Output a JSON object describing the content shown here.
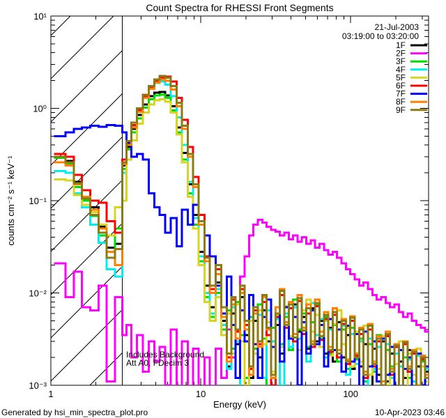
{
  "meta": {
    "date": "21-Jul-2003",
    "time_range": "03:19:00 to 03:20:00",
    "footer_left": "Generated by hsi_min_spectra_plot.pro",
    "footer_right": "10-Apr-2023 03:46"
  },
  "chart_data": {
    "type": "line",
    "title": "Count Spectra for RHESSI Front Segments",
    "xlabel": "Energy (keV)",
    "ylabel": "counts cm⁻² s⁻¹ keV⁻¹",
    "xscale": "log",
    "yscale": "log",
    "xlim": [
      1,
      331
    ],
    "ylim": [
      0.001,
      10
    ],
    "grid": false,
    "legend_position": "upper right",
    "x_ticks": {
      "values": [
        1,
        10,
        100
      ],
      "labels": [
        "1",
        "10",
        "100"
      ]
    },
    "y_ticks": {
      "values": [
        10,
        1,
        0.1,
        0.01,
        0.001
      ],
      "labels": [
        "10¹",
        "10⁰",
        "10⁻¹",
        "10⁻²",
        "10⁻³"
      ]
    },
    "hatched_region_keV": [
      1,
      3
    ],
    "annotations": [
      "Includes Background",
      "Att A0, FDecim 3"
    ],
    "energies_keV": [
      1.05,
      1.25,
      1.42,
      1.61,
      1.83,
      2.08,
      2.36,
      2.68,
      3.0,
      3.2,
      3.45,
      3.75,
      4.1,
      4.5,
      4.9,
      5.3,
      5.8,
      6.3,
      6.9,
      7.5,
      8.2,
      8.9,
      9.7,
      10.6,
      11.5,
      12.6,
      13.7,
      14.9,
      16.0,
      17.1,
      18.3,
      19.6,
      21.0,
      22.4,
      24.0,
      25.7,
      27.5,
      29.4,
      31.5,
      33.7,
      36.0,
      38.6,
      41.3,
      44.2,
      47.2,
      50.6,
      54.1,
      57.9,
      62.0,
      66.3,
      70.9,
      75.9,
      81.2,
      86.9,
      93.0,
      99.5,
      106.5,
      113.9,
      121.9,
      130.4,
      139.6,
      149.3,
      159.8,
      171.0,
      183.0,
      195.8,
      209.5,
      224.2,
      239.9,
      256.6,
      274.6,
      293.8,
      314.4
    ],
    "series": [
      {
        "name": "1F",
        "color": "#000000",
        "values": [
          0.3,
          0.27,
          0.16,
          0.11,
          0.085,
          0.052,
          0.031,
          0.034,
          0.24,
          0.38,
          0.6,
          0.85,
          1.1,
          1.35,
          1.48,
          1.5,
          1.38,
          1.05,
          0.62,
          0.33,
          0.15,
          0.07,
          0.028,
          0.012,
          0.007,
          0.013,
          0.005,
          0.0016,
          0.006,
          0.0028,
          0.009,
          0.0035,
          0.0012,
          0.005,
          0.002,
          0.0065,
          0.003,
          0.0008,
          0.0045,
          0.0022,
          0.006,
          0.0032,
          0.0075,
          0.0038,
          0.0055,
          0.0025,
          0.0068,
          0.003,
          0.005,
          0.0022,
          0.0042,
          0.0018,
          0.0048,
          0.002,
          0.0035,
          0.0015,
          0.0038,
          0.0016,
          0.0028,
          0.0009,
          0.0025,
          0.0013,
          0.003,
          0.0011,
          0.0022,
          0.0008,
          0.0018,
          0.0012,
          0.0024,
          0.0007,
          0.0016,
          0.001,
          0.0014
        ]
      },
      {
        "name": "2F",
        "color": "#ff00ff",
        "values": [
          0.021,
          0.009,
          0.017,
          0.007,
          0.0065,
          0.012,
          0.0011,
          0.009,
          0.0035,
          0.0045,
          0.002,
          0.0035,
          0.0014,
          0.003,
          0.0018,
          0.0026,
          0.001,
          0.004,
          0.0009,
          0.003,
          0.0008,
          0.0025,
          0.0007,
          0.002,
          0.0008,
          0.0025,
          0.0012,
          0.004,
          0.002,
          0.008,
          0.015,
          0.025,
          0.042,
          0.055,
          0.062,
          0.058,
          0.052,
          0.048,
          0.046,
          0.042,
          0.045,
          0.038,
          0.042,
          0.036,
          0.04,
          0.034,
          0.037,
          0.031,
          0.034,
          0.029,
          0.026,
          0.028,
          0.024,
          0.021,
          0.018,
          0.016,
          0.014,
          0.012,
          0.013,
          0.011,
          0.0095,
          0.0085,
          0.009,
          0.0078,
          0.007,
          0.0075,
          0.0062,
          0.0055,
          0.006,
          0.005,
          0.0045,
          0.0042,
          0.0038
        ]
      },
      {
        "name": "3F",
        "color": "#00dd00",
        "values": [
          0.29,
          0.25,
          0.14,
          0.1,
          0.068,
          0.042,
          0.028,
          0.05,
          0.22,
          0.36,
          0.55,
          0.78,
          1.02,
          1.25,
          1.38,
          1.4,
          1.3,
          0.95,
          0.55,
          0.28,
          0.12,
          0.055,
          0.022,
          0.009,
          0.0055,
          0.01,
          0.004,
          0.0065,
          0.0025,
          0.008,
          0.0035,
          0.0012,
          0.0055,
          0.0025,
          0.0075,
          0.0032,
          0.0009,
          0.0042,
          0.007,
          0.0028,
          0.0055,
          0.0024,
          0.0085,
          0.004,
          0.006,
          0.0026,
          0.0048,
          0.0075,
          0.0032,
          0.0055,
          0.0022,
          0.0045,
          0.0018,
          0.004,
          0.0015,
          0.0042,
          0.0019,
          0.0032,
          0.0011,
          0.0028,
          0.0014,
          0.0035,
          0.001,
          0.0024,
          0.0016,
          0.0028,
          0.0008,
          0.002,
          0.0012,
          0.0022,
          0.0009,
          0.0018,
          0.0013
        ]
      },
      {
        "name": "4F",
        "color": "#00eeee",
        "values": [
          0.21,
          0.2,
          0.12,
          0.085,
          0.055,
          0.035,
          0.018,
          0.015,
          0.2,
          0.4,
          0.65,
          0.95,
          1.35,
          1.65,
          1.88,
          1.95,
          1.8,
          1.35,
          0.8,
          0.4,
          0.16,
          0.065,
          0.025,
          0.01,
          0.006,
          0.011,
          0.0045,
          0.0015,
          0.007,
          0.003,
          0.0008,
          0.0045,
          0.0095,
          0.0028,
          0.0058,
          0.0012,
          0.0065,
          0.003,
          0.0052,
          0.001,
          0.006,
          0.0026,
          0.007,
          0.0032,
          0.0048,
          0.0018,
          0.0078,
          0.0035,
          0.0052,
          0.002,
          0.004,
          0.0062,
          0.0024,
          0.0044,
          0.0013,
          0.0036,
          0.0017,
          0.003,
          0.0009,
          0.0032,
          0.0015,
          0.0026,
          0.0008,
          0.0028,
          0.0012,
          0.0022,
          0.0016,
          0.0007,
          0.0019,
          0.0011,
          0.0021,
          0.0009,
          0.0015
        ]
      },
      {
        "name": "5F",
        "color": "#d6d620",
        "values": [
          0.17,
          0.165,
          0.115,
          0.09,
          0.075,
          0.055,
          0.042,
          0.085,
          0.1,
          0.28,
          0.45,
          0.68,
          0.9,
          1.1,
          1.22,
          1.25,
          1.18,
          0.9,
          0.52,
          0.26,
          0.11,
          0.05,
          0.02,
          0.008,
          0.005,
          0.009,
          0.0035,
          0.006,
          0.0022,
          0.0075,
          0.003,
          0.001,
          0.005,
          0.0022,
          0.0065,
          0.0028,
          0.0048,
          0.0014,
          0.0058,
          0.0026,
          0.0072,
          0.0034,
          0.0055,
          0.0024,
          0.0065,
          0.0085,
          0.0038,
          0.0058,
          0.0026,
          0.005,
          0.0021,
          0.0046,
          0.0065,
          0.0028,
          0.0042,
          0.0016,
          0.0038,
          0.0018,
          0.0044,
          0.0013,
          0.003,
          0.0015,
          0.0034,
          0.001,
          0.0026,
          0.0017,
          0.003,
          0.0009,
          0.0022,
          0.0013,
          0.0025,
          0.0016,
          0.0011
        ]
      },
      {
        "name": "6F",
        "color": "#ff0000",
        "values": [
          0.32,
          0.3,
          0.19,
          0.13,
          0.1,
          0.095,
          0.06,
          0.045,
          0.28,
          0.42,
          0.66,
          0.95,
          1.35,
          1.7,
          2.0,
          2.15,
          2.2,
          1.95,
          1.3,
          0.75,
          0.38,
          0.18,
          0.07,
          0.025,
          0.011,
          0.018,
          0.006,
          0.002,
          0.0085,
          0.0038,
          0.011,
          0.0045,
          0.0015,
          0.0065,
          0.0028,
          0.008,
          0.0035,
          0.001,
          0.0055,
          0.0095,
          0.0042,
          0.0068,
          0.003,
          0.0082,
          0.0036,
          0.006,
          0.0026,
          0.0072,
          0.0031,
          0.0052,
          0.0023,
          0.0058,
          0.002,
          0.0046,
          0.0017,
          0.005,
          0.0021,
          0.0036,
          0.0012,
          0.004,
          0.0016,
          0.003,
          0.001,
          0.0034,
          0.0013,
          0.0026,
          0.0008,
          0.0028,
          0.0014,
          0.0022,
          0.0009,
          0.0019,
          0.0012
        ]
      },
      {
        "name": "7F",
        "color": "#0000ff",
        "values": [
          0.5,
          0.55,
          0.6,
          0.62,
          0.65,
          0.63,
          0.66,
          0.65,
          0.55,
          0.42,
          0.3,
          0.32,
          0.28,
          0.12,
          0.085,
          0.07,
          0.045,
          0.065,
          0.032,
          0.08,
          0.055,
          0.09,
          0.06,
          0.042,
          0.025,
          0.012,
          0.006,
          0.015,
          0.0045,
          0.0012,
          0.0065,
          0.003,
          0.0095,
          0.0028,
          0.0012,
          0.0055,
          0.0085,
          0.0026,
          0.006,
          0.0018,
          0.007,
          0.0032,
          0.0055,
          0.001,
          0.0048,
          0.0022,
          0.0065,
          0.0028,
          0.0045,
          0.0016,
          0.0052,
          0.0024,
          0.004,
          0.0014,
          0.0044,
          0.0018,
          0.0036,
          0.0009,
          0.0038,
          0.0016,
          0.003,
          0.0011,
          0.0032,
          0.0013,
          0.0026,
          0.0008,
          0.0024,
          0.0015,
          0.002,
          0.0007,
          0.0022,
          0.001,
          0.0016
        ]
      },
      {
        "name": "8F",
        "color": "#ff8000",
        "values": [
          0.26,
          0.24,
          0.15,
          0.11,
          0.08,
          0.05,
          0.028,
          0.02,
          0.25,
          0.4,
          0.62,
          0.92,
          1.3,
          1.62,
          1.9,
          2.05,
          1.98,
          1.6,
          1.05,
          0.6,
          0.3,
          0.14,
          0.055,
          0.022,
          0.01,
          0.016,
          0.0055,
          0.0018,
          0.0075,
          0.0032,
          0.01,
          0.004,
          0.0013,
          0.006,
          0.0026,
          0.009,
          0.004,
          0.0012,
          0.007,
          0.011,
          0.0048,
          0.008,
          0.0036,
          0.0095,
          0.0042,
          0.0075,
          0.003,
          0.0085,
          0.0038,
          0.0062,
          0.0026,
          0.0068,
          0.0024,
          0.0052,
          0.0019,
          0.0056,
          0.0022,
          0.0042,
          0.0014,
          0.0046,
          0.0018,
          0.0034,
          0.0011,
          0.0038,
          0.0015,
          0.0028,
          0.0009,
          0.003,
          0.0016,
          0.0024,
          0.001,
          0.0021,
          0.0013
        ]
      },
      {
        "name": "9F",
        "color": "#8a7b12",
        "values": [
          0.3,
          0.26,
          0.155,
          0.105,
          0.07,
          0.045,
          0.024,
          0.03,
          0.26,
          0.44,
          0.7,
          1.0,
          1.4,
          1.75,
          2.05,
          2.25,
          2.15,
          1.75,
          1.15,
          0.65,
          0.32,
          0.15,
          0.06,
          0.024,
          0.012,
          0.02,
          0.007,
          0.0022,
          0.009,
          0.004,
          0.012,
          0.005,
          0.0016,
          0.007,
          0.003,
          0.0095,
          0.0042,
          0.0013,
          0.006,
          0.0105,
          0.0045,
          0.0075,
          0.0033,
          0.0088,
          0.0039,
          0.0068,
          0.0028,
          0.0078,
          0.0034,
          0.0058,
          0.0024,
          0.0062,
          0.0022,
          0.005,
          0.0018,
          0.0054,
          0.002,
          0.004,
          0.0013,
          0.0044,
          0.0017,
          0.0032,
          0.001,
          0.0036,
          0.0014,
          0.0027,
          0.0009,
          0.0029,
          0.0015,
          0.0023,
          0.0008,
          0.002,
          0.0012
        ]
      }
    ]
  }
}
